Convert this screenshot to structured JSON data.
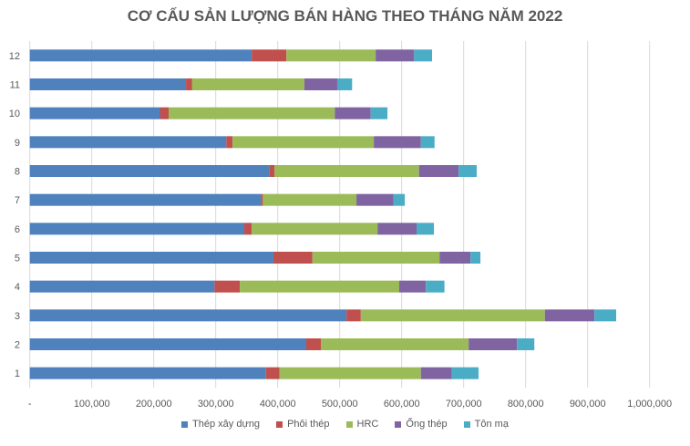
{
  "chart_data": {
    "type": "bar",
    "orientation": "horizontal",
    "stacked": true,
    "title": "CƠ CẤU SẢN LƯỢNG BÁN HÀNG THEO THÁNG NĂM 2022",
    "xlabel": "",
    "ylabel": "",
    "categories": [
      "1",
      "2",
      "3",
      "4",
      "5",
      "6",
      "7",
      "8",
      "9",
      "10",
      "11",
      "12"
    ],
    "xlim": [
      0,
      1000000
    ],
    "x_ticks": [
      "-",
      "100,000",
      "200,000",
      "300,000",
      "400,000",
      "500,000",
      "600,000",
      "700,000",
      "800,000",
      "900,000",
      "1,000,000"
    ],
    "grid": "vertical",
    "legend_position": "bottom",
    "series": [
      {
        "name": "Thép xây dựng",
        "color": "#4F81BD",
        "values": [
          381000,
          446000,
          511000,
          298000,
          393000,
          346000,
          373000,
          386000,
          317000,
          210000,
          252000,
          358000
        ]
      },
      {
        "name": "Phôi thép",
        "color": "#C0504D",
        "values": [
          22000,
          24000,
          23000,
          41000,
          63000,
          12000,
          3000,
          9000,
          10000,
          14000,
          10000,
          56000
        ]
      },
      {
        "name": "HRC",
        "color": "#9BBB59",
        "values": [
          228000,
          238000,
          297000,
          257000,
          205000,
          203000,
          151000,
          233000,
          228000,
          268000,
          181000,
          144000
        ]
      },
      {
        "name": "Ống thép",
        "color": "#8064A2",
        "values": [
          50000,
          78000,
          80000,
          43000,
          50000,
          63000,
          60000,
          64000,
          76000,
          58000,
          53000,
          62000
        ]
      },
      {
        "name": "Tôn mạ",
        "color": "#4BACC6",
        "values": [
          43000,
          28000,
          35000,
          30000,
          16000,
          28000,
          18000,
          29000,
          22000,
          27000,
          24000,
          29000
        ]
      }
    ]
  }
}
